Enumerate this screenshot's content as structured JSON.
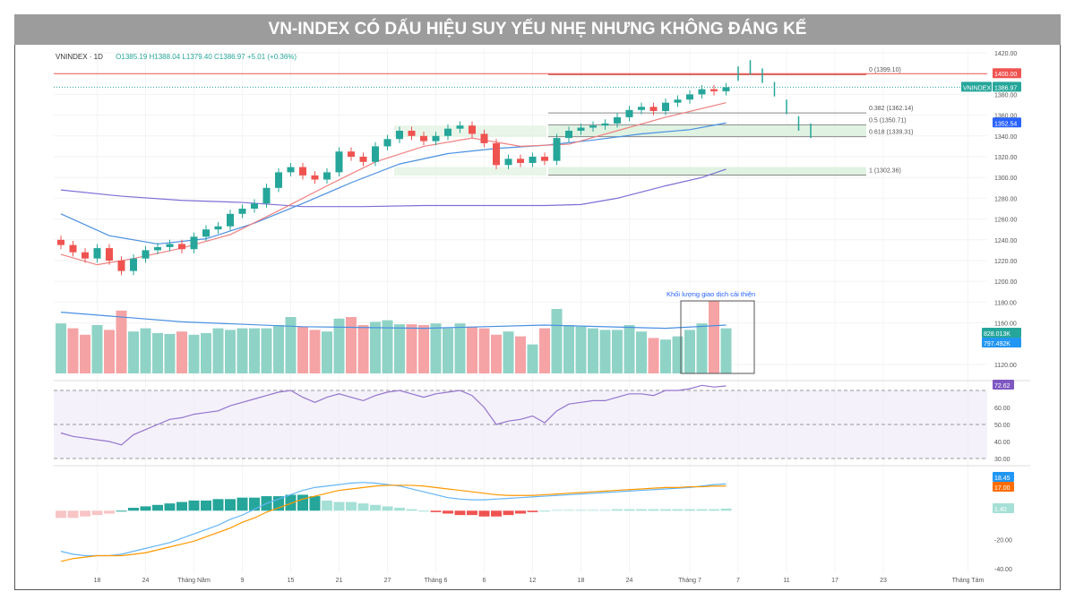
{
  "title": "VN-INDEX CÓ DẤU HIỆU SUY YẾU NHẸ NHƯNG KHÔNG ĐÁNG KỂ",
  "legend": {
    "symbol": "VNINDEX · 1D",
    "ohlc": "O1385.19 H1388.04 L1379.40 C1386.97 +5.01 (+0.36%)"
  },
  "chart_data": {
    "type": "candlestick",
    "price_ticks": [
      "1420.00",
      "1380.00",
      "1360.00",
      "1340.00",
      "1320.00",
      "1300.00",
      "1280.00",
      "1260.00",
      "1240.00",
      "1220.00",
      "1200.00",
      "1180.00",
      "1160.00",
      "1120.00"
    ],
    "price_tick_values": [
      1420,
      1380,
      1360,
      1340,
      1320,
      1300,
      1280,
      1260,
      1240,
      1220,
      1200,
      1180,
      1160,
      1120
    ],
    "x_ticks": [
      "18",
      "24",
      "Tháng Năm",
      "9",
      "15",
      "21",
      "27",
      "Tháng 6",
      "6",
      "12",
      "18",
      "24",
      "Tháng 7",
      "7",
      "11",
      "17",
      "23",
      "Tháng Tám"
    ],
    "x_tick_index": [
      3,
      7,
      11,
      15,
      19,
      23,
      27,
      31,
      35,
      39,
      43,
      47,
      52,
      56,
      60,
      64,
      68,
      75
    ],
    "start_open": 1240,
    "closes": [
      1235,
      1228,
      1222,
      1232,
      1220,
      1210,
      1222,
      1230,
      1233,
      1236,
      1231,
      1243,
      1250,
      1253,
      1265,
      1270,
      1275,
      1290,
      1305,
      1310,
      1302,
      1298,
      1305,
      1325,
      1320,
      1315,
      1330,
      1337,
      1345,
      1340,
      1335,
      1340,
      1347,
      1350,
      1342,
      1333,
      1312,
      1318,
      1314,
      1320,
      1316,
      1338,
      1345,
      1348,
      1350,
      1352,
      1358,
      1365,
      1368,
      1364,
      1372,
      1375,
      1380,
      1385,
      1383,
      1386.97
    ],
    "projection": [
      1400,
      1406,
      1398,
      1385,
      1368,
      1352,
      1345
    ],
    "ema_short": [
      [
        0,
        1226
      ],
      [
        3,
        1216
      ],
      [
        6,
        1222
      ],
      [
        10,
        1232
      ],
      [
        14,
        1245
      ],
      [
        18,
        1268
      ],
      [
        22,
        1292
      ],
      [
        26,
        1315
      ],
      [
        30,
        1330
      ],
      [
        34,
        1338
      ],
      [
        38,
        1330
      ],
      [
        42,
        1332
      ],
      [
        46,
        1345
      ],
      [
        50,
        1358
      ],
      [
        55,
        1372
      ]
    ],
    "ema_mid": [
      [
        0,
        1265
      ],
      [
        4,
        1244
      ],
      [
        8,
        1236
      ],
      [
        12,
        1241
      ],
      [
        16,
        1256
      ],
      [
        20,
        1275
      ],
      [
        24,
        1295
      ],
      [
        28,
        1313
      ],
      [
        32,
        1323
      ],
      [
        36,
        1328
      ],
      [
        40,
        1331
      ],
      [
        44,
        1336
      ],
      [
        48,
        1342
      ],
      [
        52,
        1346
      ],
      [
        55,
        1352.54
      ]
    ],
    "ema_long": [
      [
        0,
        1288
      ],
      [
        5,
        1282
      ],
      [
        10,
        1278
      ],
      [
        15,
        1276
      ],
      [
        20,
        1272
      ],
      [
        25,
        1272
      ],
      [
        30,
        1273
      ],
      [
        35,
        1273
      ],
      [
        40,
        1273
      ],
      [
        43,
        1274
      ],
      [
        46,
        1280
      ],
      [
        50,
        1292
      ],
      [
        53,
        1300
      ],
      [
        55,
        1308
      ]
    ],
    "volumes": [
      620,
      560,
      480,
      600,
      540,
      780,
      520,
      560,
      500,
      490,
      520,
      480,
      500,
      560,
      540,
      560,
      560,
      560,
      600,
      700,
      580,
      540,
      520,
      680,
      700,
      600,
      640,
      660,
      610,
      610,
      600,
      620,
      560,
      620,
      580,
      560,
      480,
      520,
      460,
      360,
      560,
      800,
      600,
      580,
      560,
      540,
      540,
      600,
      520,
      440,
      420,
      460,
      540,
      620,
      900,
      560
    ],
    "volume_ma": [
      [
        0,
        760
      ],
      [
        10,
        640
      ],
      [
        20,
        580
      ],
      [
        30,
        560
      ],
      [
        40,
        600
      ],
      [
        50,
        560
      ],
      [
        55,
        600
      ]
    ],
    "volume_labels": [
      "828.013K",
      "797.492K"
    ],
    "rsi": [
      45,
      43,
      42,
      41,
      40,
      38,
      44,
      47,
      50,
      53,
      54,
      56,
      57,
      58,
      61,
      63,
      65,
      67,
      69,
      70,
      66,
      63,
      66,
      68,
      66,
      64,
      67,
      69,
      70,
      68,
      66,
      68,
      69,
      70,
      67,
      60,
      50,
      52,
      53,
      55,
      51,
      58,
      62,
      63,
      64,
      64,
      66,
      68,
      68,
      67,
      70,
      70,
      71,
      73,
      72,
      72.62
    ],
    "rsi_levels": [
      70,
      50,
      30
    ],
    "rsi_ticks": [
      "60.00",
      "50.00",
      "40.00",
      "30.00"
    ],
    "rsi_tick_values": [
      60,
      50,
      40,
      30
    ],
    "rsi_label": "72.62",
    "macd": [
      -28,
      -30,
      -31,
      -31,
      -31,
      -30,
      -28,
      -26,
      -24,
      -22,
      -19,
      -16,
      -13,
      -10,
      -6,
      -3,
      1,
      5,
      8,
      11,
      14,
      16,
      17,
      18,
      19,
      19.5,
      19,
      18,
      17,
      15,
      13,
      11,
      9,
      8,
      7.5,
      7.5,
      8,
      8.5,
      9,
      9.5,
      10,
      10.5,
      11,
      11.5,
      12,
      12.5,
      13,
      13.5,
      14,
      14.5,
      15,
      15.5,
      16,
      17,
      18,
      18.45
    ],
    "macd_signal": [
      -35,
      -33,
      -32,
      -31,
      -31,
      -31,
      -30,
      -29,
      -27,
      -25,
      -23,
      -21,
      -18,
      -15,
      -12,
      -8,
      -5,
      -1,
      2,
      5,
      8,
      10,
      12,
      14,
      15,
      16,
      17,
      17.5,
      17.5,
      17.5,
      17,
      16,
      15,
      14,
      13,
      12,
      11,
      10.5,
      10.5,
      10.5,
      11,
      11.5,
      12,
      12.5,
      13,
      13.5,
      14,
      14.5,
      15,
      15.5,
      16,
      16,
      16.5,
      16.5,
      17,
      17.0
    ],
    "macd_hist": [
      -5,
      -5,
      -4,
      -3,
      -2,
      0,
      2,
      3,
      4,
      5,
      6,
      7,
      7,
      8,
      8,
      9,
      9,
      10,
      10,
      11,
      11,
      10,
      7,
      6,
      6,
      5,
      4,
      3,
      2,
      1,
      0,
      -1,
      -2,
      -3,
      -3,
      -4,
      -4,
      -3,
      -2,
      -1,
      0,
      0.5,
      0.5,
      0.5,
      0.5,
      0.5,
      1,
      1,
      1,
      1,
      1,
      1,
      1,
      1,
      1,
      1.4
    ],
    "macd_labels": [
      "18.45",
      "17.00",
      "1.40"
    ],
    "macd_ticks": [
      "-20.00",
      "-40.00"
    ],
    "macd_tick_values": [
      -20,
      -40
    ],
    "fib": [
      {
        "label": "0 (1399.10)",
        "value": 1399.1
      },
      {
        "label": "0.382 (1362.14)",
        "value": 1362.14
      },
      {
        "label": "0.5 (1350.71)",
        "value": 1350.71
      },
      {
        "label": "0.618 (1339.31)",
        "value": 1339.31
      },
      {
        "label": "1 (1302.36)",
        "value": 1302.36
      }
    ],
    "resistance": {
      "label": "1400.00",
      "value": 1400
    },
    "last_price": {
      "symbol": "VNINDEX",
      "label": "1386.97",
      "value": 1386.97
    },
    "ema_label": {
      "label": "1352.54",
      "value": 1352.54
    },
    "annotation": "Khối lượng giao dịch cải thiện"
  },
  "colors": {
    "up": "#26a69a",
    "down": "#ef5350",
    "up_vol": "#8fd3c6",
    "down_vol": "#f5a3a5",
    "ema_short": "#f08080",
    "ema_mid": "#4a90e2",
    "ema_long": "#7b6fd6",
    "rsi": "#9575cd",
    "macd": "#64b5f6",
    "signal": "#ff9800"
  }
}
